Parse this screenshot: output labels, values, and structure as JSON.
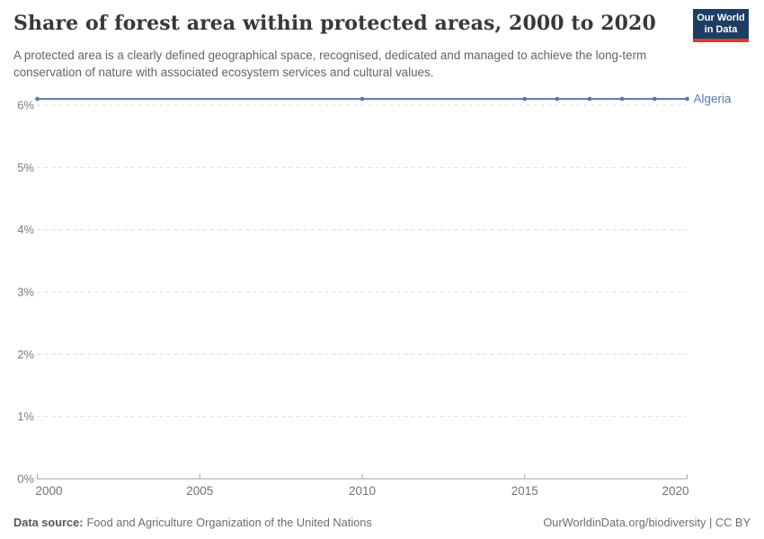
{
  "logo": {
    "line1": "Our World",
    "line2": "in Data",
    "bg_color": "#1d3d63",
    "accent_color": "#d93a35"
  },
  "chart_data": {
    "type": "line",
    "title": "Share of forest area within protected areas, 2000 to 2020",
    "subtitle": "A protected area is a clearly defined geographical space, recognised, dedicated and managed to achieve the long-term conservation of nature with associated ecosystem services and cultural values.",
    "xlabel": "",
    "ylabel": "",
    "xlim": [
      2000,
      2020
    ],
    "ylim": [
      0,
      6.3
    ],
    "grid": "horizontal-dashed",
    "legend_position": "end-of-line-label",
    "x_ticks": {
      "values": [
        2000,
        2005,
        2010,
        2015,
        2020
      ],
      "labels": [
        "2000",
        "2005",
        "2010",
        "2015",
        "2020"
      ]
    },
    "y_ticks": {
      "values": [
        0,
        1,
        2,
        3,
        4,
        5,
        6
      ],
      "labels": [
        "0%",
        "1%",
        "2%",
        "3%",
        "4%",
        "5%",
        "6%"
      ]
    },
    "series": [
      {
        "name": "Algeria",
        "color": "#5777ac",
        "x": [
          2000,
          2010,
          2015,
          2016,
          2017,
          2018,
          2019,
          2020
        ],
        "values": [
          6.1,
          6.1,
          6.1,
          6.1,
          6.1,
          6.1,
          6.1,
          6.1
        ]
      }
    ]
  },
  "footer": {
    "source_label": "Data source:",
    "source_value": "Food and Agriculture Organization of the United Nations",
    "right_text": "OurWorldinData.org/biodiversity | CC BY"
  }
}
